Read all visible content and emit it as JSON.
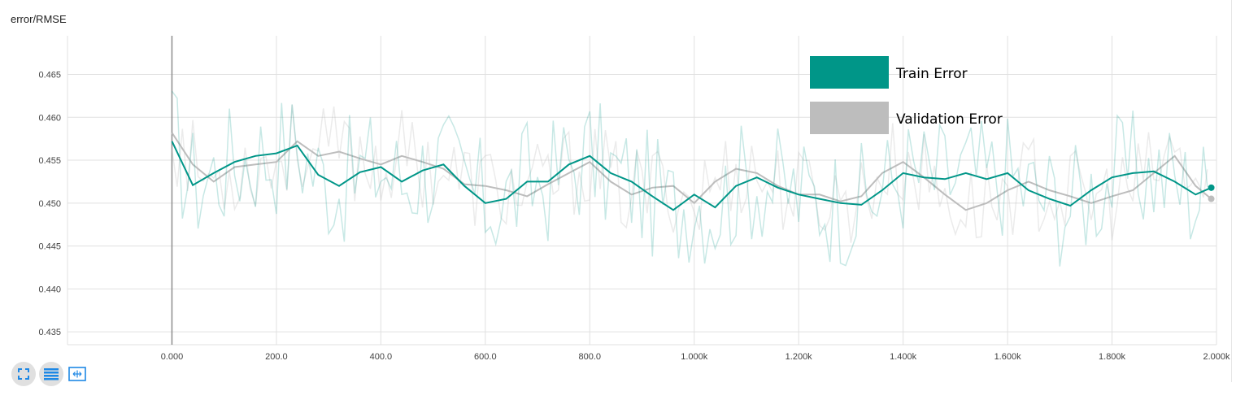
{
  "chart_data": {
    "type": "line",
    "title": "error/RMSE",
    "xlim": [
      -200,
      2000
    ],
    "ylim": [
      0.4335,
      0.4695
    ],
    "x_ticks": [
      0,
      200,
      400,
      600,
      800,
      1000,
      1200,
      1400,
      1600,
      1800,
      2000
    ],
    "x_tick_labels": [
      "0.000",
      "200.0",
      "400.0",
      "600.0",
      "800.0",
      "1.000k",
      "1.200k",
      "1.400k",
      "1.600k",
      "1.800k",
      "2.000k"
    ],
    "y_ticks": [
      0.435,
      0.44,
      0.445,
      0.45,
      0.455,
      0.46,
      0.465
    ],
    "y_tick_labels": [
      "0.435",
      "0.440",
      "0.445",
      "0.450",
      "0.455",
      "0.460",
      "0.465"
    ],
    "grid": true,
    "legend_position": "top-right",
    "series": [
      {
        "name": "Train Error",
        "color": "#009688",
        "x": [
          0,
          40,
          80,
          120,
          160,
          200,
          240,
          280,
          320,
          360,
          400,
          440,
          480,
          520,
          560,
          600,
          640,
          680,
          720,
          760,
          800,
          840,
          880,
          920,
          960,
          1000,
          1040,
          1080,
          1120,
          1160,
          1200,
          1240,
          1280,
          1320,
          1360,
          1400,
          1440,
          1480,
          1520,
          1560,
          1600,
          1640,
          1680,
          1720,
          1760,
          1800,
          1840,
          1880,
          1920,
          1960,
          1990
        ],
        "values": [
          0.4572,
          0.4521,
          0.4535,
          0.4548,
          0.4555,
          0.4558,
          0.4567,
          0.4533,
          0.452,
          0.4536,
          0.4542,
          0.4525,
          0.4538,
          0.4545,
          0.452,
          0.45,
          0.4505,
          0.4525,
          0.4525,
          0.4545,
          0.4555,
          0.4535,
          0.4525,
          0.4508,
          0.4492,
          0.451,
          0.4495,
          0.452,
          0.453,
          0.4518,
          0.451,
          0.4505,
          0.45,
          0.4498,
          0.4515,
          0.4535,
          0.453,
          0.4528,
          0.4535,
          0.4528,
          0.4535,
          0.4515,
          0.4505,
          0.4497,
          0.4515,
          0.453,
          0.4535,
          0.4537,
          0.4525,
          0.451,
          0.4518
        ]
      },
      {
        "name": "Validation Error",
        "color": "#bdbdbd",
        "x": [
          0,
          40,
          80,
          120,
          160,
          200,
          240,
          280,
          320,
          360,
          400,
          440,
          480,
          520,
          560,
          600,
          640,
          680,
          720,
          760,
          800,
          840,
          880,
          920,
          960,
          1000,
          1040,
          1080,
          1120,
          1160,
          1200,
          1240,
          1280,
          1320,
          1360,
          1400,
          1440,
          1480,
          1520,
          1560,
          1600,
          1640,
          1680,
          1720,
          1760,
          1800,
          1840,
          1880,
          1920,
          1960,
          1990
        ],
        "values": [
          0.4582,
          0.4545,
          0.4525,
          0.4542,
          0.4545,
          0.4548,
          0.4572,
          0.4555,
          0.456,
          0.4552,
          0.4545,
          0.4555,
          0.4548,
          0.454,
          0.4522,
          0.452,
          0.4515,
          0.4508,
          0.4522,
          0.4535,
          0.4548,
          0.4525,
          0.451,
          0.4518,
          0.452,
          0.45,
          0.4525,
          0.454,
          0.4535,
          0.452,
          0.451,
          0.451,
          0.4502,
          0.4508,
          0.4535,
          0.4548,
          0.453,
          0.451,
          0.4492,
          0.45,
          0.4515,
          0.4525,
          0.4515,
          0.4508,
          0.45,
          0.4508,
          0.4515,
          0.4535,
          0.4555,
          0.452,
          0.4505
        ]
      }
    ]
  },
  "toolbar": {
    "buttons": [
      "expand-icon",
      "list-icon",
      "fit-domain-icon"
    ]
  }
}
